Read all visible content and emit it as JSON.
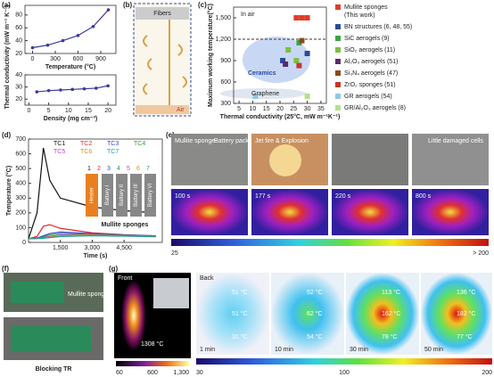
{
  "panels": {
    "a": "(a)",
    "b": "(b)",
    "c": "(c)",
    "d": "(d)",
    "e": "(e)",
    "f": "(f)",
    "g": "(g)"
  },
  "b": {
    "fibers": "Fibers",
    "air": "Air"
  },
  "e": {
    "captions": [
      "Mullite sponge",
      "Battery pack",
      "Jet fire & Explosion",
      "Little damaged cells"
    ],
    "times": [
      "100 s",
      "177 s",
      "220 s",
      "800 s"
    ],
    "colorbar": [
      "25",
      "> 200"
    ]
  },
  "f": {
    "caption": "Mullite sponges",
    "label": "Blocking TR"
  },
  "g": {
    "front": "Front",
    "front_temp": "1308 °C",
    "front_colorbar": [
      "60",
      "600",
      "1,300"
    ],
    "back": "Back",
    "times": [
      "1 min",
      "10 min",
      "30 min",
      "50 min"
    ],
    "temps": [
      [
        "51 °C",
        "51 °C",
        "31 °C"
      ],
      [
        "52 °C",
        "62 °C",
        "54 °C"
      ],
      [
        "113 °C",
        "162 °C",
        "78 °C"
      ],
      [
        "136 °C",
        "182 °C",
        "77 °C"
      ]
    ],
    "back_colorbar": [
      "30",
      "100",
      "200"
    ]
  },
  "chart_data": [
    {
      "type": "line",
      "ylabel": "Thermal conductivity (mW m⁻¹ K⁻¹)",
      "xlabel": "Temperature (°C)",
      "color": "#3a3aa0",
      "x": [
        0,
        200,
        400,
        600,
        800,
        1000
      ],
      "values": [
        29,
        33,
        40,
        48,
        62,
        88
      ],
      "xlim": [
        -100,
        1100
      ],
      "ylim": [
        20,
        95
      ],
      "xticks": [
        0,
        300,
        600,
        900
      ],
      "yticks": [
        20,
        40,
        60,
        80
      ],
      "grid": false
    },
    {
      "type": "line",
      "xlabel": "Density (mg cm⁻³)",
      "color": "#3a3aa0",
      "x": [
        2,
        5,
        8,
        11,
        14,
        17,
        20
      ],
      "values": [
        26,
        27,
        27.5,
        28,
        28.5,
        29,
        31
      ],
      "xlim": [
        -1,
        22
      ],
      "ylim": [
        15,
        40
      ],
      "xticks": [
        0,
        5,
        10,
        15,
        20
      ],
      "yticks": [
        20,
        30,
        40
      ],
      "grid": false
    },
    {
      "type": "scatter",
      "ylabel": "Maximum working temperature(°C)",
      "xlabel": "Thermal conductivity (25°C, mW m⁻¹K⁻¹)",
      "annotations": {
        "in_air": "In air",
        "ceramics": "Ceramics",
        "graphene": "Graphene"
      },
      "reference_line": 1200,
      "legend": "right",
      "xlim": [
        3,
        37
      ],
      "ylim": [
        300,
        1650
      ],
      "xticks": [
        5,
        10,
        15,
        20,
        25,
        30,
        35
      ],
      "yticks": [
        {
          "value": 300,
          "label": "300"
        },
        {
          "value": 600,
          "label": "600"
        },
        {
          "value": 900,
          "label": "900"
        },
        {
          "value": 1200,
          "label": "1,200"
        },
        {
          "value": 1500,
          "label": "1,500"
        }
      ],
      "series": [
        {
          "name": "Mullite sponges",
          "note": "(This work)",
          "color": "#e03c28",
          "x": [
            26,
            28,
            30
          ],
          "values": [
            1500,
            1500,
            1500
          ]
        },
        {
          "name": "BN structures (6, 48, 55)",
          "color": "#2c4a9a",
          "x": [
            21,
            30
          ],
          "values": [
            900,
            1000
          ]
        },
        {
          "name": "SiC aerogels (9)",
          "color": "#3aa648",
          "x": [
            27
          ],
          "values": [
            1150
          ]
        },
        {
          "name": "SiO₂ aerogels (11)",
          "color": "#7ac043",
          "x": [
            23,
            26
          ],
          "values": [
            1050,
            900
          ]
        },
        {
          "name": "Al₂O₃ aerogels (51)",
          "color": "#5a2a6a",
          "x": [
            22
          ],
          "values": [
            850
          ]
        },
        {
          "name": "Si₃N₄ aerogels (47)",
          "color": "#8a4a20",
          "x": [
            28
          ],
          "values": [
            1180
          ]
        },
        {
          "name": "ZrO₂ sponges (51)",
          "color": "#c0392b",
          "x": [
            27
          ],
          "values": [
            830
          ]
        },
        {
          "name": "GR aerogels (54)",
          "color": "#8ec8e8",
          "x": [
            11
          ],
          "values": [
            400
          ]
        },
        {
          "name": "GR/Al₂O₃ aerogels (8)",
          "color": "#b4e08a",
          "x": [
            30
          ],
          "values": [
            400
          ]
        }
      ]
    },
    {
      "type": "line",
      "ylabel": "Temperature (°C)",
      "xlabel": "Time (s)",
      "inset": {
        "heater": "Heater",
        "batteries": [
          "Battery I",
          "Battery II",
          "Battery III",
          "Battery VI"
        ],
        "numbers": [
          "1",
          "2",
          "3",
          "4",
          "5",
          "6",
          "7"
        ],
        "label": "Mullite sponges"
      },
      "x": [
        0,
        400,
        700,
        1000,
        1500,
        3000,
        4500,
        6000
      ],
      "xlim": [
        0,
        6300
      ],
      "ylim": [
        0,
        700
      ],
      "xticks": [
        {
          "value": 1500,
          "label": "1,500"
        },
        {
          "value": 3000,
          "label": "3,000"
        },
        {
          "value": 4500,
          "label": "4,500"
        }
      ],
      "yticks": [
        0,
        100,
        200,
        300,
        400,
        500,
        600,
        700
      ],
      "series": [
        {
          "name": "TC1",
          "color": "#111111",
          "values": [
            25,
            200,
            640,
            420,
            300,
            240,
            215,
            200
          ]
        },
        {
          "name": "TC2",
          "color": "#e0282a",
          "values": [
            25,
            40,
            110,
            120,
            95,
            65,
            52,
            45
          ]
        },
        {
          "name": "TC3",
          "color": "#2a4ad0",
          "values": [
            25,
            30,
            45,
            60,
            70,
            60,
            50,
            45
          ]
        },
        {
          "name": "TC4",
          "color": "#2aa040",
          "values": [
            25,
            28,
            38,
            50,
            60,
            55,
            48,
            42
          ]
        },
        {
          "name": "TC5",
          "color": "#c040d0",
          "values": [
            25,
            27,
            32,
            40,
            50,
            50,
            45,
            40
          ]
        },
        {
          "name": "TC6",
          "color": "#e09020",
          "values": [
            25,
            26,
            29,
            35,
            45,
            48,
            44,
            40
          ]
        },
        {
          "name": "TC7",
          "color": "#20a0a0",
          "values": [
            25,
            26,
            28,
            32,
            40,
            45,
            42,
            38
          ]
        }
      ]
    }
  ]
}
